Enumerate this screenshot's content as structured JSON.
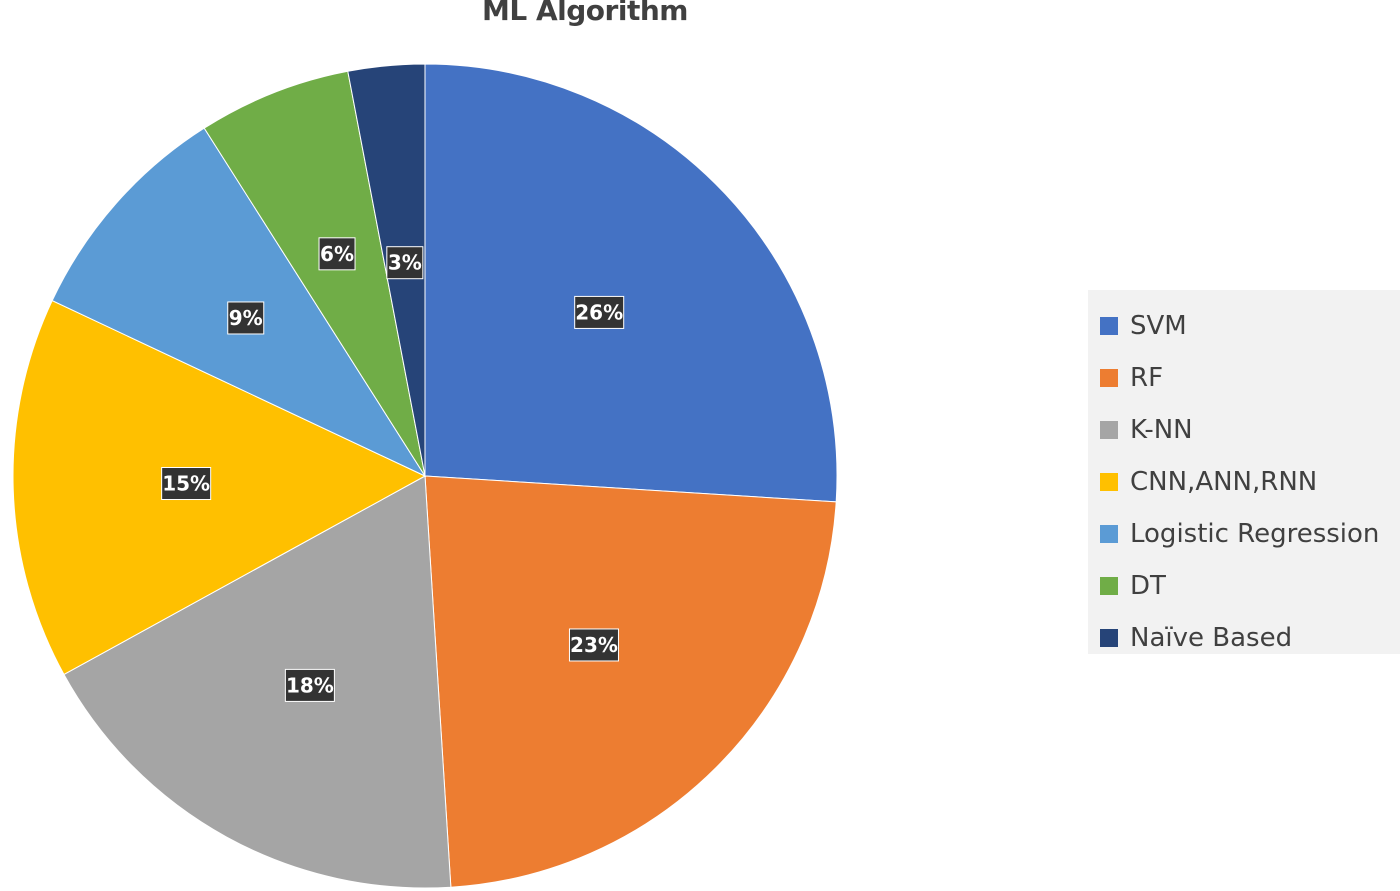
{
  "chart_data": {
    "type": "pie",
    "title": "ML Algorithm",
    "categories": [
      "SVM",
      "RF",
      "K-NN",
      "CNN,ANN,RNN",
      "Logistic Regression",
      "DT",
      "Naïve Based"
    ],
    "values": [
      26,
      23,
      18,
      15,
      9,
      6,
      3
    ],
    "value_labels": [
      "26%",
      "23%",
      "18%",
      "15%",
      "9%",
      "6%",
      "3%"
    ],
    "colors": [
      "#4472C4",
      "#ED7D31",
      "#A5A5A5",
      "#FFC000",
      "#5B9BD5",
      "#70AD47",
      "#264478"
    ],
    "legend_position": "right",
    "start_angle": "12 o'clock",
    "direction": "clockwise"
  }
}
